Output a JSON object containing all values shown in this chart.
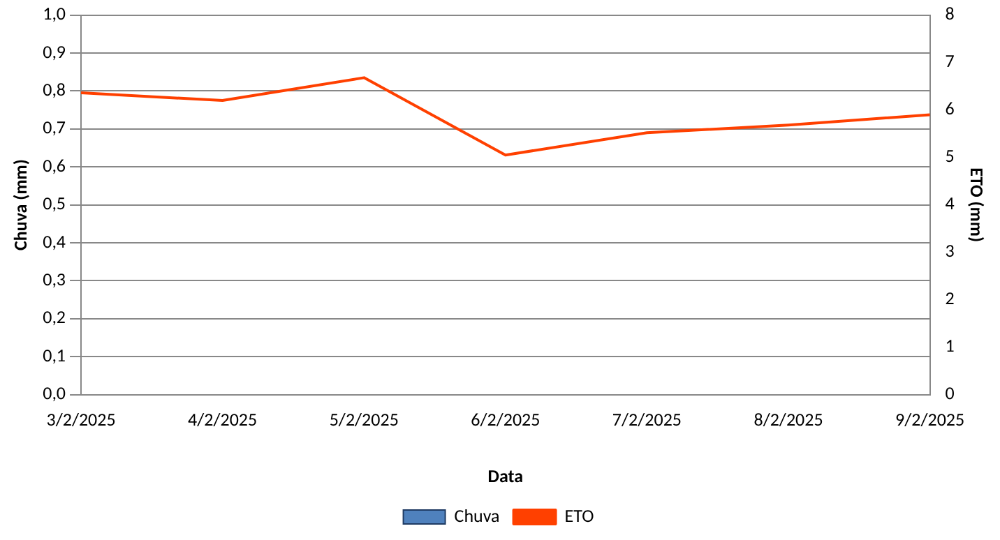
{
  "chart_data": {
    "type": "bar",
    "xlabel": "Data",
    "ylabel": "Chuva (mm)",
    "y2label": "ETO (mm)",
    "categories": [
      "3/2/2025",
      "4/2/2025",
      "5/2/2025",
      "6/2/2025",
      "7/2/2025",
      "8/2/2025",
      "9/2/2025"
    ],
    "series": [
      {
        "name": "Chuva",
        "color": "#4f81bd",
        "values": [
          0,
          0,
          0,
          0,
          0,
          0,
          0
        ]
      },
      {
        "name": "ETO",
        "type": "line",
        "axis": "y2",
        "color": "#ff4000",
        "values": [
          6.36,
          6.2,
          6.68,
          5.05,
          5.52,
          5.68,
          5.9
        ]
      }
    ],
    "ylim": [
      0,
      1
    ],
    "yticks": [
      {
        "value": 0,
        "label": "0,0"
      },
      {
        "value": 0.1,
        "label": "0,1"
      },
      {
        "value": 0.2,
        "label": "0,2"
      },
      {
        "value": 0.3,
        "label": "0,3"
      },
      {
        "value": 0.4,
        "label": "0,4"
      },
      {
        "value": 0.5,
        "label": "0,5"
      },
      {
        "value": 0.6,
        "label": "0,6"
      },
      {
        "value": 0.7,
        "label": "0,7"
      },
      {
        "value": 0.8,
        "label": "0,8"
      },
      {
        "value": 0.9,
        "label": "0,9"
      },
      {
        "value": 1,
        "label": "1,0"
      }
    ],
    "y2lim": [
      0,
      8
    ],
    "y2ticks": [
      0,
      1,
      2,
      3,
      4,
      5,
      6,
      7,
      8
    ],
    "grid": "y",
    "legend": "bottom",
    "marker": "none",
    "line_style": "solid"
  }
}
